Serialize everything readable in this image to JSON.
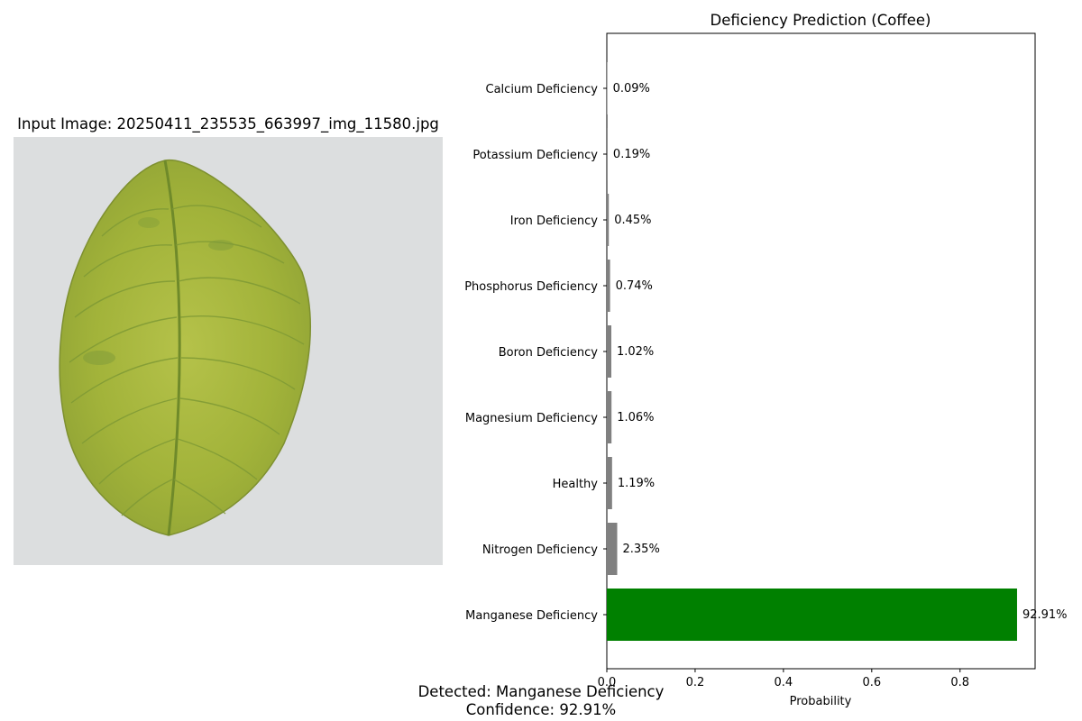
{
  "image_panel": {
    "title": "Input Image: 20250411_235535_663997_img_11580.jpg",
    "background_color": "#dcdedf",
    "leaf_color": "#a2b33a"
  },
  "chart_data": {
    "type": "bar",
    "orientation": "horizontal",
    "title": "Deficiency Prediction (Coffee)",
    "xlabel": "Probability",
    "ylabel": "",
    "xlim": [
      0,
      0.97
    ],
    "xticks": [
      0.0,
      0.2,
      0.4,
      0.6,
      0.8
    ],
    "xtick_labels": [
      "0.0",
      "0.2",
      "0.4",
      "0.6",
      "0.8"
    ],
    "categories": [
      "Calcium Deficiency",
      "Potassium Deficiency",
      "Iron Deficiency",
      "Phosphorus Deficiency",
      "Boron Deficiency",
      "Magnesium Deficiency",
      "Healthy",
      "Nitrogen Deficiency",
      "Manganese Deficiency"
    ],
    "values": [
      0.0009,
      0.0019,
      0.0045,
      0.0074,
      0.0102,
      0.0106,
      0.0119,
      0.0235,
      0.9291
    ],
    "labels": [
      "0.09%",
      "0.19%",
      "0.45%",
      "0.74%",
      "1.02%",
      "1.06%",
      "1.19%",
      "2.35%",
      "92.91%"
    ],
    "colors": [
      "#808080",
      "#808080",
      "#808080",
      "#808080",
      "#808080",
      "#808080",
      "#808080",
      "#808080",
      "#008000"
    ],
    "grid": false
  },
  "result": {
    "detected": "Detected: Manganese Deficiency",
    "confidence": "Confidence: 92.91%"
  }
}
